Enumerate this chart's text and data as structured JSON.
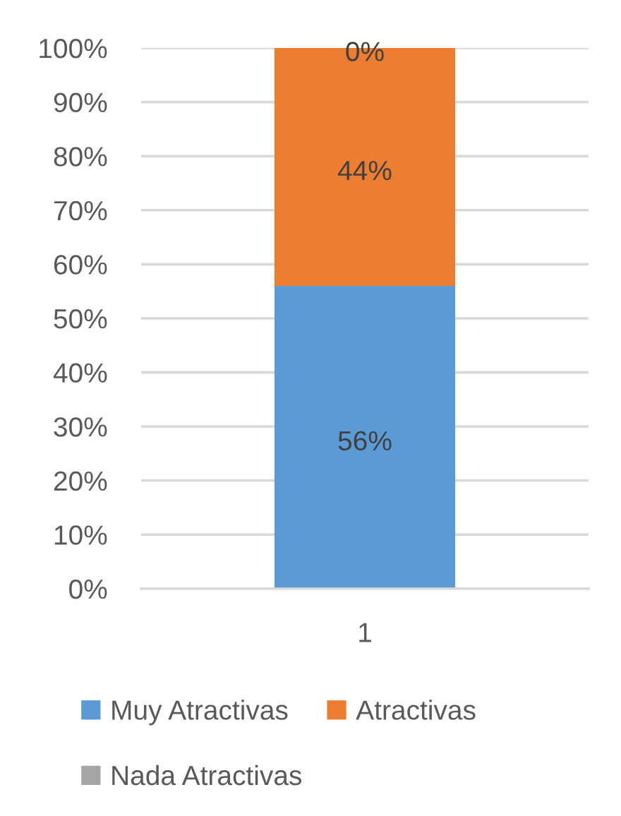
{
  "chart_data": {
    "type": "bar",
    "stacked": true,
    "categories": [
      "1"
    ],
    "series": [
      {
        "name": "Muy Atractivas",
        "color": "#5b9bd5",
        "values": [
          56
        ],
        "value_labels": [
          "56%"
        ]
      },
      {
        "name": "Atractivas",
        "color": "#ed7d31",
        "values": [
          44
        ],
        "value_labels": [
          "44%"
        ]
      },
      {
        "name": "Nada Atractivas",
        "color": "#a5a5a5",
        "values": [
          0
        ],
        "value_labels": [
          "0%"
        ]
      }
    ],
    "ylim": [
      0,
      100
    ],
    "yticks": [
      {
        "value": 0,
        "label": "0%"
      },
      {
        "value": 10,
        "label": "10%"
      },
      {
        "value": 20,
        "label": "20%"
      },
      {
        "value": 30,
        "label": "30%"
      },
      {
        "value": 40,
        "label": "40%"
      },
      {
        "value": 50,
        "label": "50%"
      },
      {
        "value": 60,
        "label": "60%"
      },
      {
        "value": 70,
        "label": "70%"
      },
      {
        "value": 80,
        "label": "80%"
      },
      {
        "value": 90,
        "label": "90%"
      },
      {
        "value": 100,
        "label": "100%"
      }
    ],
    "grid": "y",
    "legend": "bottom"
  }
}
